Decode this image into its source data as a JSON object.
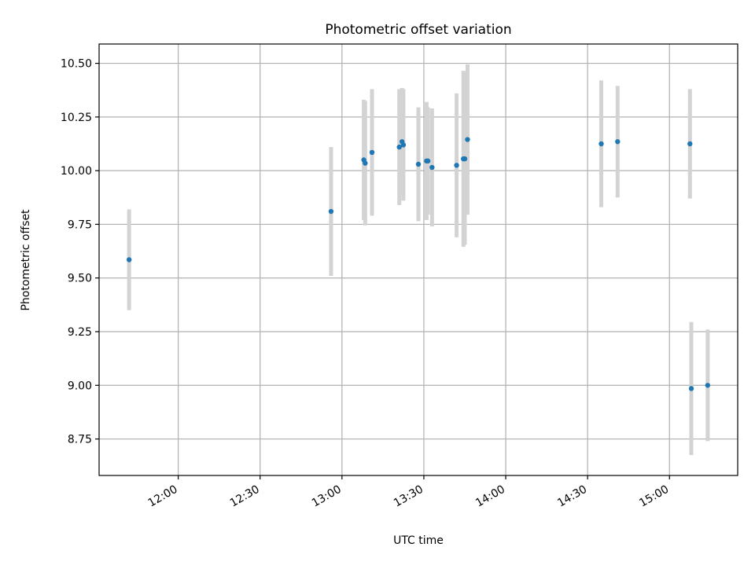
{
  "chart_data": {
    "type": "scatter",
    "title": "Photometric offset variation",
    "xlabel": "UTC time",
    "ylabel": "Photometric offset",
    "xlim": [
      "11:31",
      "15:25"
    ],
    "ylim": [
      8.58,
      10.59
    ],
    "x_ticks": [
      "12:00",
      "12:30",
      "13:00",
      "13:30",
      "14:00",
      "14:30",
      "15:00"
    ],
    "y_ticks": [
      8.75,
      9.0,
      9.25,
      9.5,
      9.75,
      10.0,
      10.25,
      10.5
    ],
    "grid": true,
    "marker_color": "#1f77b4",
    "errorbar_color": "#d3d3d3",
    "series": [
      {
        "points": [
          {
            "x": "11:42",
            "y": 9.585,
            "err": 0.235
          },
          {
            "x": "12:56",
            "y": 9.81,
            "err": 0.3
          },
          {
            "x": "13:08",
            "y": 10.05,
            "err": 0.28
          },
          {
            "x": "13:08.5",
            "y": 10.035,
            "err": 0.29
          },
          {
            "x": "13:11",
            "y": 10.085,
            "err": 0.295
          },
          {
            "x": "13:21",
            "y": 10.11,
            "err": 0.27
          },
          {
            "x": "13:22",
            "y": 10.135,
            "err": 0.25
          },
          {
            "x": "13:22.5",
            "y": 10.12,
            "err": 0.26
          },
          {
            "x": "13:28",
            "y": 10.03,
            "err": 0.265
          },
          {
            "x": "13:31",
            "y": 10.045,
            "err": 0.275
          },
          {
            "x": "13:31.5",
            "y": 10.045,
            "err": 0.25
          },
          {
            "x": "13:33",
            "y": 10.015,
            "err": 0.275
          },
          {
            "x": "13:42",
            "y": 10.025,
            "err": 0.335
          },
          {
            "x": "13:44.5",
            "y": 10.055,
            "err": 0.41
          },
          {
            "x": "13:45",
            "y": 10.055,
            "err": 0.4
          },
          {
            "x": "13:46",
            "y": 10.145,
            "err": 0.35
          },
          {
            "x": "14:35",
            "y": 10.125,
            "err": 0.295
          },
          {
            "x": "14:41",
            "y": 10.135,
            "err": 0.26
          },
          {
            "x": "15:07.5",
            "y": 10.125,
            "err": 0.255
          },
          {
            "x": "15:08",
            "y": 8.985,
            "err": 0.31
          },
          {
            "x": "15:14",
            "y": 9.0,
            "err": 0.26
          }
        ]
      }
    ]
  }
}
